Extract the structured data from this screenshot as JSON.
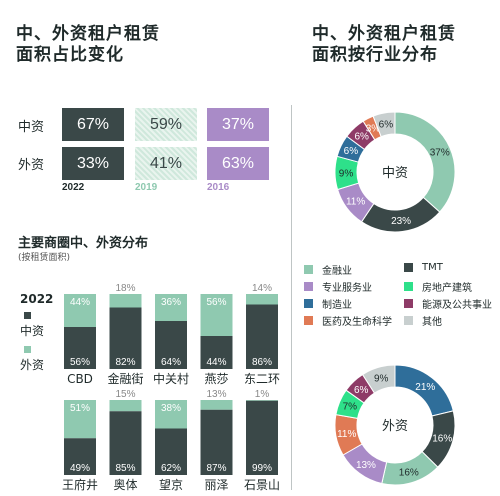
{
  "left_title": "中、外资租户租赁\n面积占比变化",
  "right_title": "中、外资租户租赁\n面积按行业分布",
  "colors": {
    "dark": "#3a4848",
    "green": "#8fc9b0",
    "purple": "#a98bc7",
    "hatch": "#cfe8dc",
    "finance": "#8fc9b0",
    "tmt": "#3a4848",
    "professional": "#a98bc7",
    "realestate": "#2ee08a",
    "manufacturing": "#2f6e9a",
    "energy": "#8e3b67",
    "medical": "#e07a55",
    "other": "#c8cfcf"
  },
  "share_table": {
    "rows": [
      "中资",
      "外资"
    ],
    "years": [
      "2022",
      "2019",
      "2016"
    ],
    "values": {
      "中资": [
        "67%",
        "59%",
        "37%"
      ],
      "外资": [
        "33%",
        "41%",
        "63%"
      ]
    }
  },
  "districts_title": "主要商圈中、外资分布",
  "districts_note": "(按租赁面积)",
  "districts_legend": {
    "year": "2022",
    "domestic": "中资",
    "foreign": "外资"
  },
  "legend": [
    {
      "key": "finance",
      "label": "金融业"
    },
    {
      "key": "tmt",
      "label": "TMT"
    },
    {
      "key": "professional",
      "label": "专业服务业"
    },
    {
      "key": "realestate",
      "label": "房地产建筑"
    },
    {
      "key": "manufacturing",
      "label": "制造业"
    },
    {
      "key": "energy",
      "label": "能源及公共事业"
    },
    {
      "key": "medical",
      "label": "医药及生命科学"
    },
    {
      "key": "other",
      "label": "其他"
    }
  ],
  "chart_data": [
    {
      "type": "bar",
      "stacked": true,
      "title": "主要商圈中、外资分布",
      "categories": [
        "CBD",
        "金融街",
        "中关村",
        "燕莎",
        "东二环",
        "王府井",
        "奥体",
        "望京",
        "丽泽",
        "石景山"
      ],
      "series": [
        {
          "name": "中资",
          "values": [
            56,
            82,
            64,
            44,
            86,
            49,
            85,
            62,
            87,
            99
          ]
        },
        {
          "name": "外资",
          "values": [
            44,
            18,
            36,
            56,
            14,
            51,
            15,
            38,
            13,
            1
          ]
        }
      ],
      "ylim": [
        0,
        100
      ]
    },
    {
      "type": "pie",
      "title": "中资",
      "labels": [
        "金融业",
        "TMT",
        "专业服务业",
        "房地产建筑",
        "制造业",
        "能源及公共事业",
        "医药及生命科学",
        "其他"
      ],
      "values": [
        37,
        23,
        11,
        9,
        6,
        6,
        3,
        6
      ]
    },
    {
      "type": "pie",
      "title": "外资",
      "labels": [
        "制造业",
        "TMT",
        "金融业",
        "专业服务业",
        "医药及生命科学",
        "房地产建筑",
        "能源及公共事业",
        "其他"
      ],
      "values": [
        21,
        16,
        16,
        13,
        11,
        7,
        6,
        9
      ]
    }
  ]
}
